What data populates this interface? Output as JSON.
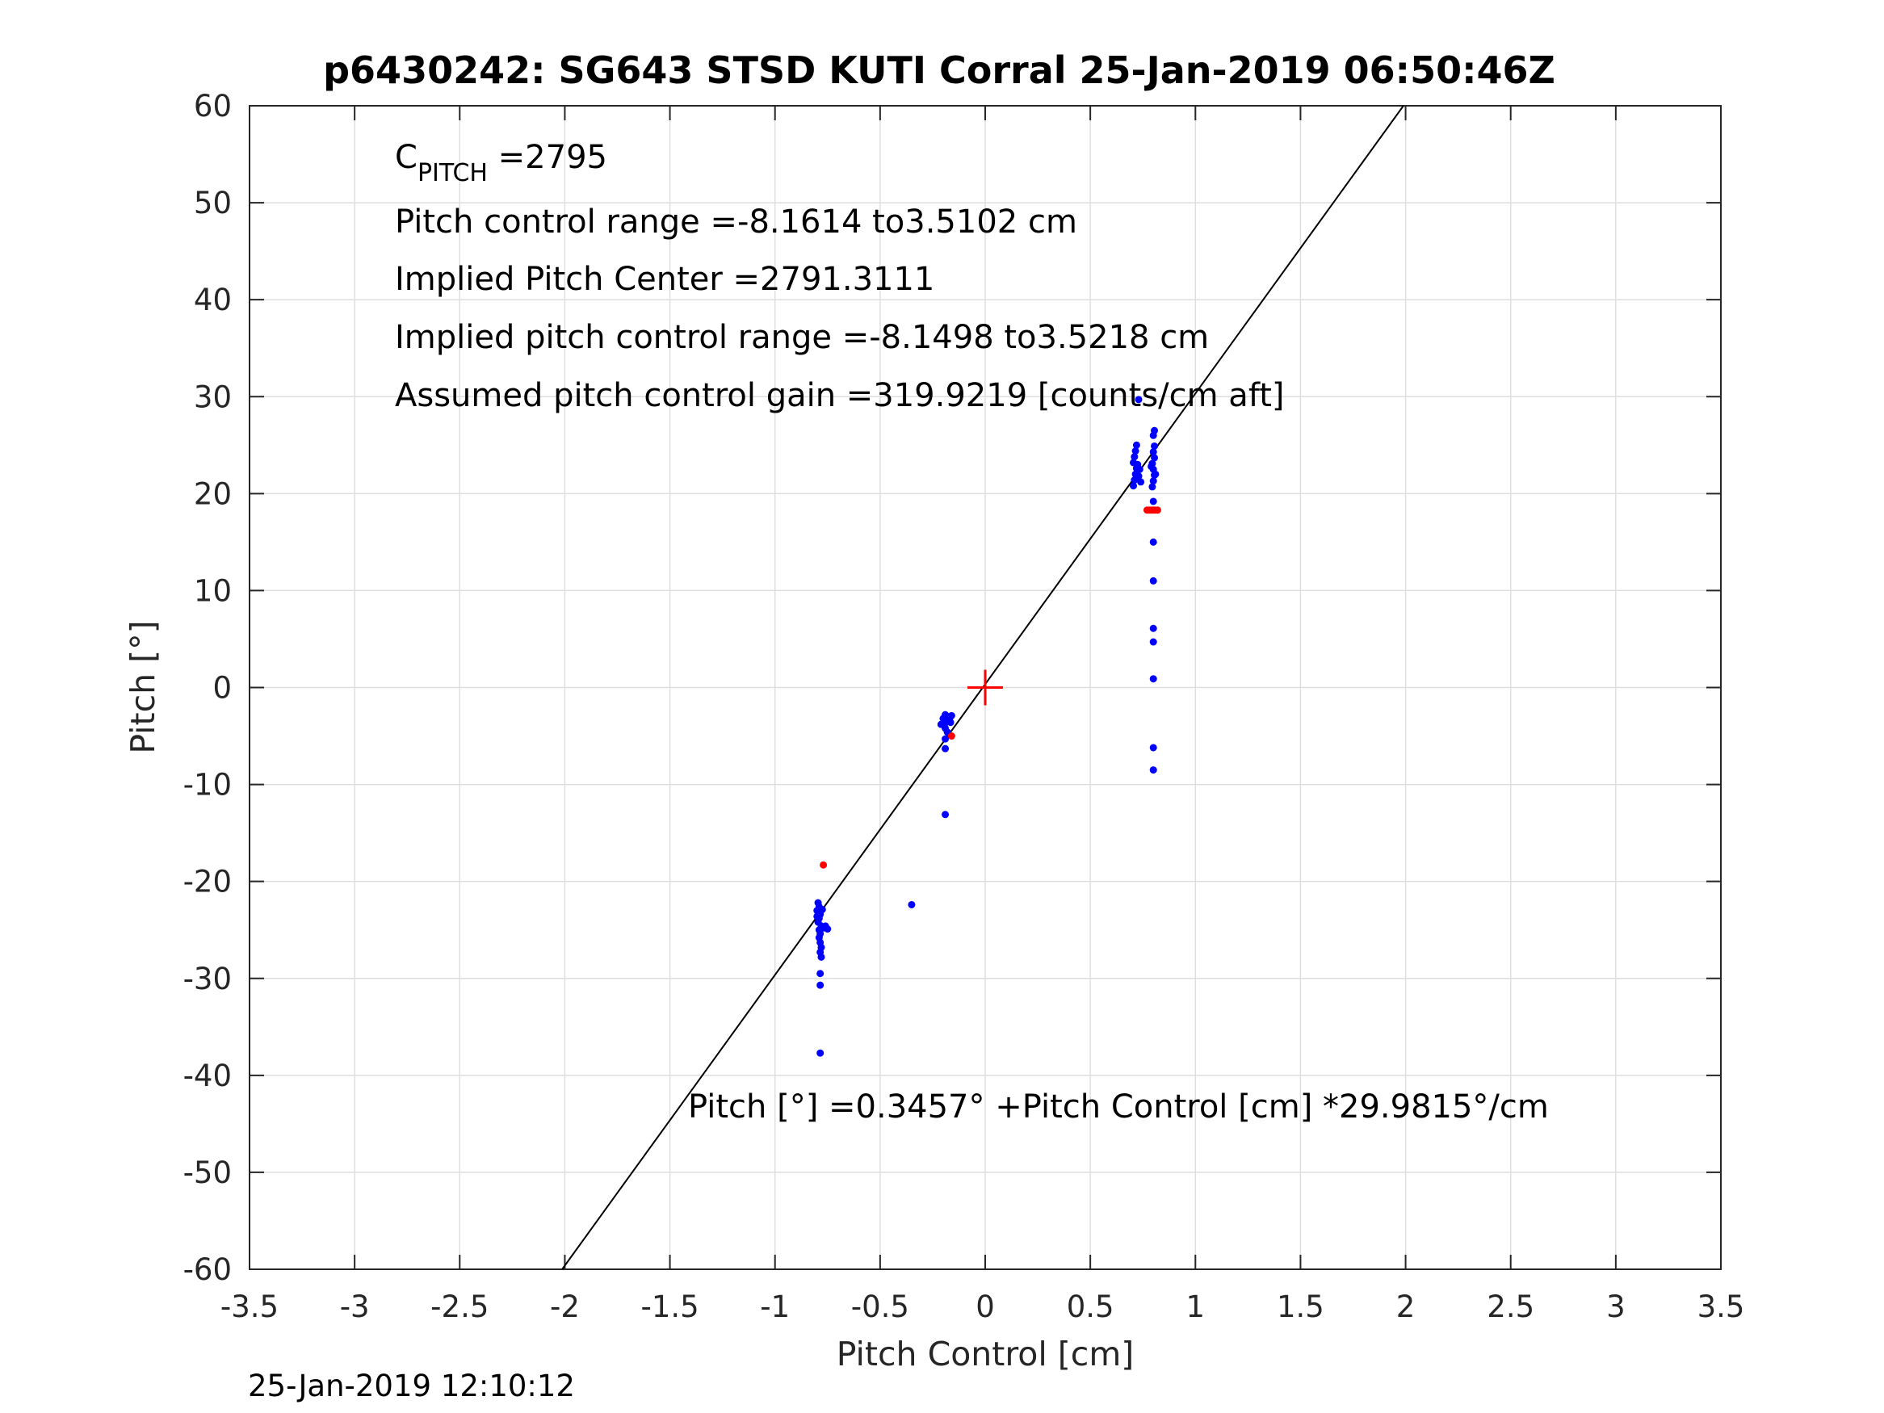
{
  "chart_data": {
    "type": "scatter",
    "title": "p6430242: SG643 STSD KUTI Corral 25-Jan-2019 06:50:46Z",
    "xlabel": "Pitch Control [cm]",
    "ylabel": "Pitch [°]",
    "xlim": [
      -3.5,
      3.5
    ],
    "ylim": [
      -60,
      60
    ],
    "grid": true,
    "xticks": [
      -3.5,
      -3,
      -2.5,
      -2,
      -1.5,
      -1,
      -0.5,
      0,
      0.5,
      1,
      1.5,
      2,
      2.5,
      3,
      3.5
    ],
    "xtick_labels": [
      "-3.5",
      "-3",
      "-2.5",
      "-2",
      "-1.5",
      "-1",
      "-0.5",
      "0",
      "0.5",
      "1",
      "1.5",
      "2",
      "2.5",
      "3",
      "3.5"
    ],
    "yticks": [
      60,
      50,
      40,
      30,
      20,
      10,
      0,
      -10,
      -20,
      -30,
      -40,
      -50,
      -60
    ],
    "ytick_labels": [
      "60",
      "50",
      "40",
      "30",
      "20",
      "10",
      "0",
      "-10",
      "-20",
      "-30",
      "-40",
      "-50",
      "-60"
    ],
    "fit_line": {
      "intercept": 0.3457,
      "slope": 29.9815,
      "color": "#000000"
    },
    "center_marker": {
      "x": 0,
      "y": 0,
      "color": "#ff0000"
    },
    "series": [
      {
        "color": "#0000ff",
        "points": [
          [
            -0.795,
            -22.2
          ],
          [
            -0.79,
            -22.6
          ],
          [
            -0.8,
            -23.0
          ],
          [
            -0.785,
            -23.4
          ],
          [
            -0.79,
            -23.8
          ],
          [
            -0.795,
            -24.2
          ],
          [
            -0.78,
            -24.6
          ],
          [
            -0.79,
            -25.0
          ],
          [
            -0.785,
            -25.4
          ],
          [
            -0.79,
            -25.8
          ],
          [
            -0.785,
            -26.3
          ],
          [
            -0.78,
            -26.8
          ],
          [
            -0.785,
            -27.3
          ],
          [
            -0.78,
            -27.8
          ],
          [
            -0.775,
            -22.9
          ],
          [
            -0.8,
            -23.6
          ],
          [
            -0.77,
            -24.8
          ],
          [
            -0.76,
            -24.6
          ],
          [
            -0.75,
            -24.9
          ],
          [
            -0.785,
            -29.5
          ],
          [
            -0.785,
            -30.7
          ],
          [
            -0.785,
            -37.7
          ],
          [
            -0.35,
            -22.4
          ],
          [
            -0.19,
            -2.8
          ],
          [
            -0.2,
            -3.2
          ],
          [
            -0.185,
            -3.5
          ],
          [
            -0.195,
            -3.9
          ],
          [
            -0.18,
            -3.0
          ],
          [
            -0.17,
            -3.3
          ],
          [
            -0.16,
            -2.9
          ],
          [
            -0.165,
            -3.6
          ],
          [
            -0.21,
            -3.8
          ],
          [
            -0.19,
            -4.2
          ],
          [
            -0.18,
            -4.6
          ],
          [
            -0.19,
            -5.3
          ],
          [
            -0.19,
            -6.3
          ],
          [
            -0.19,
            -13.1
          ],
          [
            0.705,
            20.8
          ],
          [
            0.71,
            21.4
          ],
          [
            0.715,
            22.0
          ],
          [
            0.72,
            22.6
          ],
          [
            0.705,
            23.2
          ],
          [
            0.71,
            23.8
          ],
          [
            0.715,
            24.4
          ],
          [
            0.72,
            25.0
          ],
          [
            0.73,
            21.8
          ],
          [
            0.735,
            22.5
          ],
          [
            0.725,
            23.0
          ],
          [
            0.74,
            21.2
          ],
          [
            0.73,
            29.7
          ],
          [
            0.795,
            20.7
          ],
          [
            0.8,
            21.3
          ],
          [
            0.805,
            21.9
          ],
          [
            0.8,
            22.5
          ],
          [
            0.795,
            23.1
          ],
          [
            0.805,
            23.7
          ],
          [
            0.8,
            24.3
          ],
          [
            0.805,
            24.9
          ],
          [
            0.8,
            26.0
          ],
          [
            0.805,
            26.5
          ],
          [
            0.81,
            22.0
          ],
          [
            0.79,
            22.8
          ],
          [
            0.8,
            19.2
          ],
          [
            0.8,
            15.0
          ],
          [
            0.8,
            11.0
          ],
          [
            0.8,
            6.1
          ],
          [
            0.8,
            4.7
          ],
          [
            0.8,
            0.9
          ],
          [
            0.8,
            -6.2
          ],
          [
            0.8,
            -8.5
          ]
        ]
      },
      {
        "color": "#ff0000",
        "points": [
          [
            -0.77,
            -18.3
          ],
          [
            -0.16,
            -5.0
          ],
          [
            0.77,
            18.3
          ],
          [
            0.78,
            18.3
          ],
          [
            0.79,
            18.3
          ],
          [
            0.8,
            18.3
          ],
          [
            0.81,
            18.3
          ],
          [
            0.82,
            18.3
          ]
        ]
      }
    ]
  },
  "annotations": {
    "cpitch_main": "C",
    "cpitch_sub": "PITCH",
    "cpitch_value": " =2795",
    "line2": "Pitch control range =-8.1614 to3.5102 cm",
    "line3": "Implied Pitch Center =2791.3111",
    "line4": "Implied pitch control range =-8.1498 to3.5218 cm",
    "line5": "Assumed pitch control gain =319.9219 [counts/cm aft]",
    "fit_equation": "Pitch [°] =0.3457° +Pitch Control [cm] *29.9815°/cm"
  },
  "footer": {
    "timestamp": "25-Jan-2019 12:10:12"
  }
}
